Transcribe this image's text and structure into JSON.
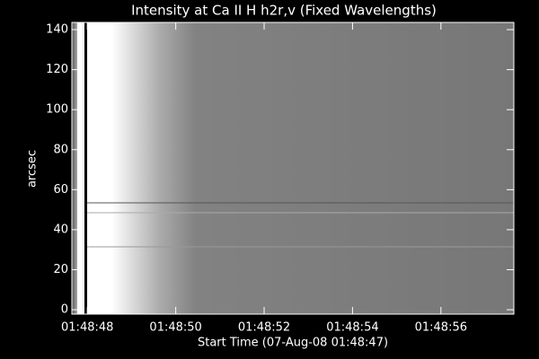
{
  "chart_data": {
    "type": "image",
    "title": "Intensity at Ca II H h2r,v (Fixed Wavelengths)",
    "x_label": "Start Time (07-Aug-08 01:48:47)",
    "y_label": "arcsec",
    "xlim": [
      47.65,
      57.65
    ],
    "xticks": [
      {
        "value": 48,
        "label": "01:48:48"
      },
      {
        "value": 50,
        "label": "01:48:50"
      },
      {
        "value": 52,
        "label": "01:48:52"
      },
      {
        "value": 54,
        "label": "01:48:54"
      },
      {
        "value": 56,
        "label": "01:48:56"
      }
    ],
    "ylim": [
      -2.2,
      143.6
    ],
    "yticks": [
      0,
      20,
      40,
      60,
      80,
      100,
      120,
      140
    ]
  }
}
